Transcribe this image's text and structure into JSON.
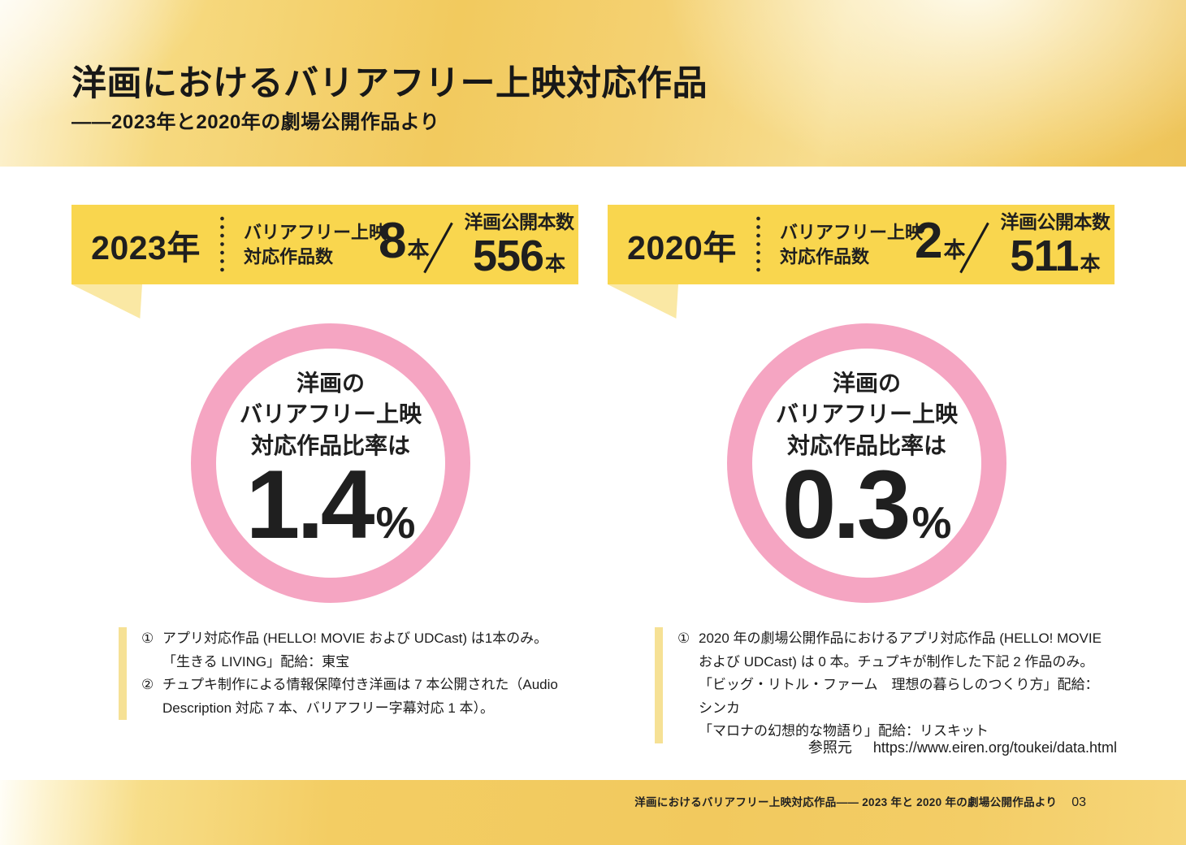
{
  "header": {
    "title": "洋画におけるバリアフリー上映対応作品",
    "subtitle": "——2023年と2020年の劇場公開作品より"
  },
  "panels": [
    {
      "year": "2023年",
      "metric_label": "バリアフリー上映\n対応作品数",
      "count": "8",
      "count_unit": "本",
      "total_label": "洋画公開本数",
      "total": "556",
      "total_unit": "本",
      "circle_caption": "洋画の\nバリアフリー上映\n対応作品比率は",
      "ratio": "1.4",
      "ratio_unit": "%",
      "footnotes": [
        {
          "marker": "①",
          "text": "アプリ対応作品 (HELLO! MOVIE および UDCast) は1本のみ。\n「生きる LIVING」配給：東宝"
        },
        {
          "marker": "②",
          "text": "チュプキ制作による情報保障付き洋画は 7 本公開された（Audio\nDescription 対応 7 本、バリアフリー字幕対応 1 本）。"
        }
      ]
    },
    {
      "year": "2020年",
      "metric_label": "バリアフリー上映\n対応作品数",
      "count": "2",
      "count_unit": "本",
      "total_label": "洋画公開本数",
      "total": "511",
      "total_unit": "本",
      "circle_caption": "洋画の\nバリアフリー上映\n対応作品比率は",
      "ratio": "0.3",
      "ratio_unit": "%",
      "footnotes": [
        {
          "marker": "①",
          "text": "2020 年の劇場公開作品におけるアプリ対応作品 (HELLO! MOVIE\nおよび UDCast) は 0 本。チュプキが制作した下記 2 作品のみ。\n「ビッグ・リトル・ファーム　理想の暮らしのつくり方」配給：シンカ\n「マロナの幻想的な物語り」配給：リスキット"
        }
      ]
    }
  ],
  "reference": {
    "label": "参照元",
    "url": "https://www.eiren.org/toukei/data.html"
  },
  "footer": {
    "text": "洋画におけるバリアフリー上映対応作品—— 2023 年と 2020 年の劇場公開作品より",
    "page_number": "03"
  },
  "colors": {
    "accent_yellow": "#F9D64E",
    "tail_yellow": "#FAE8A4",
    "ring_pink": "#F5A5C2",
    "note_bar": "#F6E195",
    "ink": "#1F1F1F"
  }
}
